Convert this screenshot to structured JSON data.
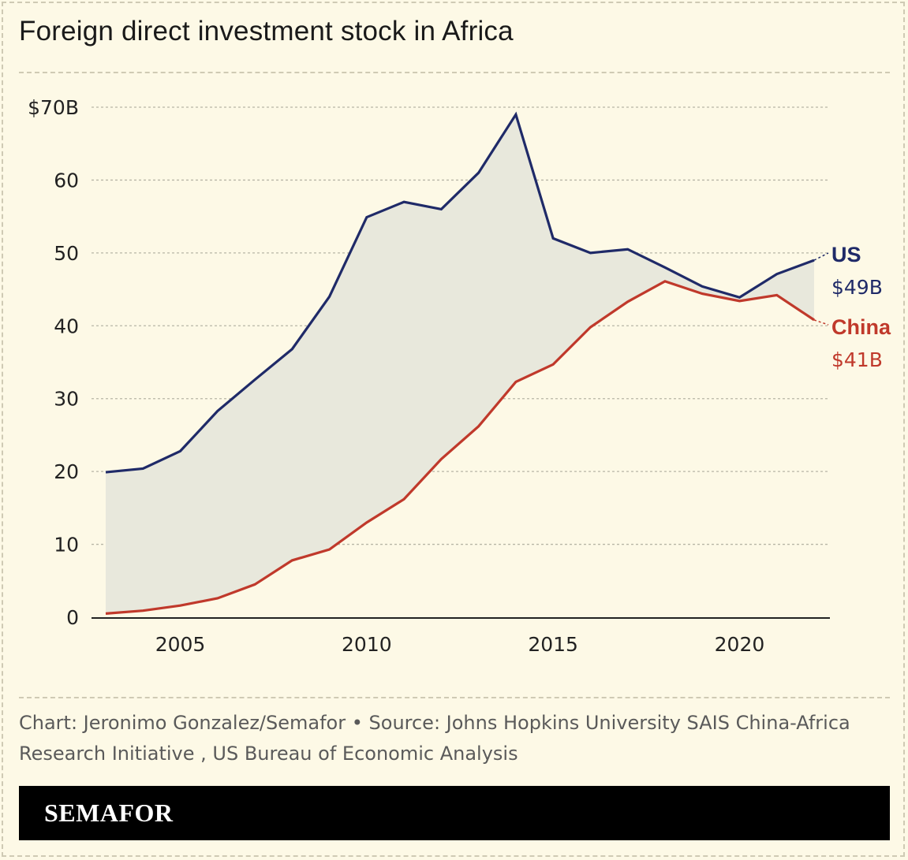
{
  "title": "Foreign direct investment stock in Africa",
  "credit": "Chart: Jeronimo Gonzalez/Semafor • Source: Johns Hopkins University SAIS China-Africa Research Initiative , US Bureau of Economic Analysis",
  "brand": "SEMAFOR",
  "colors": {
    "us": "#1f2a68",
    "china": "#c0392b",
    "fill": "#e8e8dc",
    "grid": "#b8b6a6",
    "background": "#fdf9e6"
  },
  "chart_data": {
    "type": "line",
    "x": [
      2003,
      2004,
      2005,
      2006,
      2007,
      2008,
      2009,
      2010,
      2011,
      2012,
      2013,
      2014,
      2015,
      2016,
      2017,
      2018,
      2019,
      2020,
      2021,
      2022
    ],
    "series": [
      {
        "name": "US",
        "color": "#1f2a68",
        "values": [
          19.9,
          20.4,
          22.8,
          28.3,
          32.6,
          36.8,
          44.0,
          54.9,
          57.0,
          56.0,
          61.0,
          69.0,
          52.0,
          50.0,
          50.5,
          48.0,
          45.4,
          43.9,
          47.1,
          49.0
        ],
        "end_label": "US",
        "end_value_label": "$49B"
      },
      {
        "name": "China",
        "color": "#c0392b",
        "values": [
          0.5,
          0.9,
          1.6,
          2.6,
          4.5,
          7.8,
          9.3,
          13.0,
          16.2,
          21.7,
          26.2,
          32.3,
          34.7,
          39.8,
          43.3,
          46.1,
          44.4,
          43.4,
          44.2,
          40.8
        ],
        "end_label": "China",
        "end_value_label": "$41B"
      }
    ],
    "x_ticks": [
      2005,
      2010,
      2015,
      2020
    ],
    "x_tick_labels": [
      "2005",
      "2010",
      "2015",
      "2020"
    ],
    "y_ticks": [
      0,
      10,
      20,
      30,
      40,
      50,
      60,
      70
    ],
    "y_tick_labels": [
      "0",
      "10",
      "20",
      "30",
      "40",
      "50",
      "60",
      "$70B"
    ],
    "ylim": [
      0,
      70
    ],
    "xlim": [
      2003,
      2022
    ],
    "grid": "horizontal dashed",
    "legend": "direct labels at line ends",
    "shaded_gap_between_series": true
  }
}
